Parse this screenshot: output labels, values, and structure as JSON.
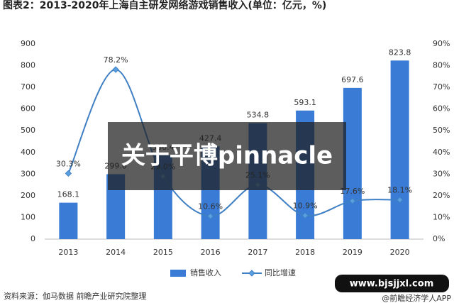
{
  "chart_data": {
    "type": "bar-line",
    "title": "图表2：2013-2020年上海自主研发网络游戏销售收入(单位：亿元，%)",
    "categories": [
      "2013",
      "2014",
      "2015",
      "2016",
      "2017",
      "2018",
      "2019",
      "2020"
    ],
    "series": [
      {
        "name": "销售收入",
        "type": "bar",
        "color": "#3a7bd5",
        "values": [
          168.1,
          299.6,
          386.4,
          427.4,
          534.8,
          593.1,
          697.6,
          823.8
        ]
      },
      {
        "name": "同比增速",
        "type": "line",
        "axis": "y2",
        "color": "#3f7fc4",
        "values": [
          30.3,
          78.2,
          29.0,
          10.6,
          25.1,
          10.9,
          17.6,
          18.1
        ],
        "value_labels": [
          "30.3%",
          "78.2%",
          "29.0%",
          "10.6%",
          "25.1%",
          "10.9%",
          "17.6%",
          "18.1%"
        ]
      }
    ],
    "ylim": [
      0,
      900
    ],
    "yticks": [
      0,
      100,
      200,
      300,
      400,
      500,
      600,
      700,
      800,
      900
    ],
    "y2lim": [
      0,
      90
    ],
    "y2ticks": [
      {
        "value": 0,
        "label": "0%"
      },
      {
        "value": 10,
        "label": "10%"
      },
      {
        "value": 20,
        "label": "20%"
      },
      {
        "value": 30,
        "label": "30%"
      },
      {
        "value": 40,
        "label": "40%"
      },
      {
        "value": 50,
        "label": "50%"
      },
      {
        "value": 60,
        "label": "60%"
      },
      {
        "value": 70,
        "label": "70%"
      },
      {
        "value": 80,
        "label": "80%"
      },
      {
        "value": 90,
        "label": "90%"
      }
    ],
    "source": "资料来源：伽马数据 前瞻产业研究院整理"
  },
  "overlay": {
    "banner": "关于平博pinnacle",
    "url": "www.bjsjjxl.com",
    "credit": "@前瞻经济学人APP"
  }
}
